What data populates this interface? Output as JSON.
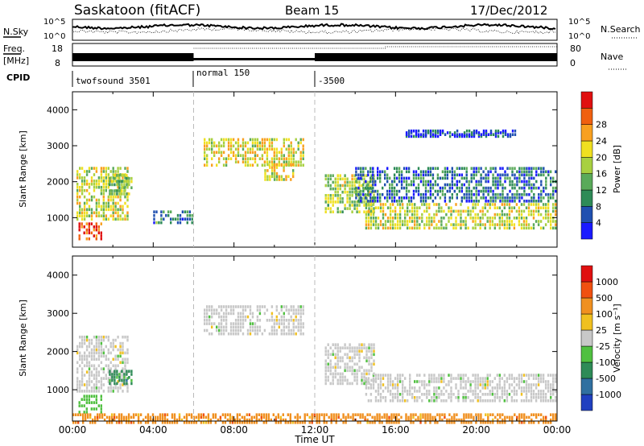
{
  "header": {
    "title": "Saskatoon (fitACF)",
    "beam": "Beam 15",
    "date": "17/Dec/2012"
  },
  "top_panel_labels": {
    "nsky": "N.Sky",
    "nsky_ticks": [
      "10^5",
      "10^0"
    ],
    "nsearch": "N.Search",
    "nsearch_ticks": [
      "10^5",
      "10^0"
    ],
    "freq": "Freq.",
    "freq_unit": "[MHz]",
    "freq_ticks": [
      "18",
      "8"
    ],
    "nave": "Nave",
    "nave_ticks": [
      "80",
      "0"
    ],
    "cpid": "CPID"
  },
  "cpid_segments": [
    {
      "label": "twofsound 3501",
      "start_hour": 0
    },
    {
      "label": "normal 150",
      "start_hour": 6
    },
    {
      "label": "-3500",
      "start_hour": 12
    }
  ],
  "chart_data": [
    {
      "type": "heatmap",
      "name": "power",
      "ylabel": "Slant Range [km]",
      "xlabel": "Time UT",
      "xlim_hours": [
        0,
        24
      ],
      "ylim": [
        180,
        4500
      ],
      "y_ticks": [
        1000,
        2000,
        3000,
        4000
      ],
      "x_tick_labels": [
        "00:00",
        "04:00",
        "08:00",
        "12:00",
        "16:00",
        "20:00",
        "00:00"
      ],
      "colorbar": {
        "label": "Power [dB]",
        "ticks": [
          "4",
          "8",
          "12",
          "16",
          "20",
          "24",
          "28"
        ],
        "colors": [
          "#1a1aff",
          "#2050b0",
          "#2e8b57",
          "#5aaa5a",
          "#a8d040",
          "#f0e020",
          "#f8a020",
          "#f06010",
          "#e01010"
        ]
      },
      "echo_regions": [
        {
          "t0": 0.2,
          "t1": 2.8,
          "r0": 1000,
          "r1": 2500,
          "level": 0.55
        },
        {
          "t0": 0.3,
          "t1": 1.5,
          "r0": 450,
          "r1": 950,
          "level": 0.95
        },
        {
          "t0": 1.8,
          "t1": 3.0,
          "r0": 1700,
          "r1": 2300,
          "level": 0.45
        },
        {
          "t0": 6.5,
          "t1": 11.5,
          "r0": 2500,
          "r1": 3300,
          "level": 0.6
        },
        {
          "t0": 9.5,
          "t1": 11.0,
          "r0": 2100,
          "r1": 2600,
          "level": 0.6
        },
        {
          "t0": 12.5,
          "t1": 15.0,
          "r0": 1200,
          "r1": 2300,
          "level": 0.5
        },
        {
          "t0": 14.5,
          "t1": 24.0,
          "r0": 750,
          "r1": 1500,
          "level": 0.55
        },
        {
          "t0": 14.0,
          "t1": 24.0,
          "r0": 1500,
          "r1": 2500,
          "level": 0.2
        },
        {
          "t0": 16.5,
          "t1": 22.0,
          "r0": 3300,
          "r1": 3500,
          "level": 0.1
        },
        {
          "t0": 4.0,
          "t1": 6.0,
          "r0": 900,
          "r1": 1300,
          "level": 0.25
        }
      ]
    },
    {
      "type": "heatmap",
      "name": "velocity",
      "ylabel": "Slant Range [km]",
      "xlabel": "Time UT",
      "xlim_hours": [
        0,
        24
      ],
      "ylim": [
        180,
        4500
      ],
      "y_ticks": [
        1000,
        2000,
        3000,
        4000
      ],
      "x_tick_labels": [
        "00:00",
        "04:00",
        "08:00",
        "12:00",
        "16:00",
        "20:00",
        "00:00"
      ],
      "colorbar": {
        "label": "Velocity [m s⁻¹]",
        "ticks": [
          "1000",
          "500",
          "100",
          "25",
          "-25",
          "-100",
          "-500",
          "-1000"
        ],
        "colors": [
          "#2040c0",
          "#3070a0",
          "#2e8b57",
          "#50c040",
          "#c8c8c8",
          "#f0c020",
          "#f09020",
          "#f05010",
          "#e01010"
        ]
      },
      "echo_regions": [
        {
          "t0": 6.5,
          "t1": 11.5,
          "r0": 2500,
          "r1": 3300,
          "color": 4
        },
        {
          "t0": 14.5,
          "t1": 24.0,
          "r0": 750,
          "r1": 1500,
          "color": 4
        },
        {
          "t0": 12.5,
          "t1": 15.0,
          "r0": 1200,
          "r1": 2300,
          "color": 4
        },
        {
          "t0": 0.2,
          "t1": 2.8,
          "r0": 1000,
          "r1": 2500,
          "color": 4
        },
        {
          "t0": 0.3,
          "t1": 1.5,
          "r0": 450,
          "r1": 950,
          "color": 3
        },
        {
          "t0": 1.8,
          "t1": 3.0,
          "r0": 1200,
          "r1": 1600,
          "color": 2
        },
        {
          "t0": 0.0,
          "t1": 24.0,
          "r0": 180,
          "r1": 450,
          "color": 6
        }
      ]
    }
  ]
}
